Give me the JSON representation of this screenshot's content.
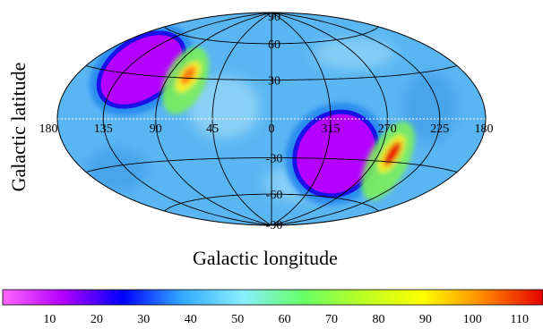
{
  "chart_data": {
    "type": "heatmap",
    "projection": "Hammer-Aitoff (all-sky)",
    "xlabel": "Galactic longitude",
    "ylabel": "Galactic latitude",
    "longitude_ticks": [
      "180",
      "135",
      "90",
      "45",
      "0",
      "315",
      "270",
      "225",
      "180"
    ],
    "latitude_ticks": [
      "90",
      "60",
      "30",
      "-30",
      "-60",
      "-90"
    ],
    "colorbar": {
      "range": [
        0,
        115
      ],
      "ticks": [
        "10",
        "20",
        "30",
        "40",
        "50",
        "60",
        "70",
        "80",
        "90",
        "100",
        "110"
      ],
      "colors": [
        "#ff66ff",
        "#b400ff",
        "#0000ff",
        "#33aaff",
        "#88eeff",
        "#66ff66",
        "#bbff22",
        "#ffff00",
        "#ff8800",
        "#e60000"
      ]
    },
    "background_value": 45,
    "features": [
      {
        "name": "lobe-north-west",
        "l": 128,
        "b": 40,
        "value": 5
      },
      {
        "name": "hotspot-north-west",
        "l": 68,
        "b": 32,
        "value": 105
      },
      {
        "name": "lobe-south-east",
        "l": 300,
        "b": -20,
        "value": 5
      },
      {
        "name": "hotspot-south-east",
        "l": 260,
        "b": -22,
        "value": 110
      }
    ]
  }
}
